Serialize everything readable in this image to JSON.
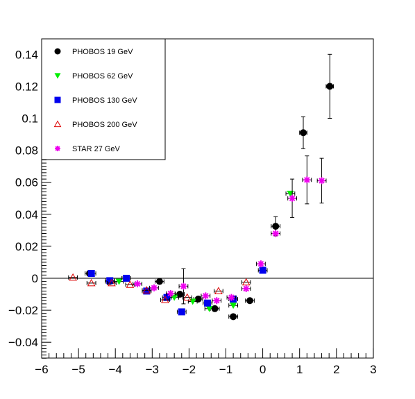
{
  "chart_data": {
    "type": "scatter",
    "title": "",
    "xlabel": "",
    "ylabel": "",
    "xlim": [
      -6,
      3
    ],
    "ylim": [
      -0.05,
      0.15
    ],
    "xticks": [
      "−6",
      "−5",
      "−4",
      "−3",
      "−2",
      "−1",
      "0",
      "1",
      "2",
      "3"
    ],
    "yticks": [
      "−0.04",
      "−0.02",
      "0",
      "0.02",
      "0.04",
      "0.06",
      "0.08",
      "0.1",
      "0.12",
      "0.14"
    ],
    "xtick_values": [
      -6,
      -5,
      -4,
      -3,
      -2,
      -1,
      0,
      1,
      2,
      3
    ],
    "ytick_values": [
      -0.04,
      -0.02,
      0,
      0.02,
      0.04,
      0.06,
      0.08,
      0.1,
      0.12,
      0.14
    ],
    "grid": false,
    "legend_position": "top-left",
    "zero_line": true,
    "series": [
      {
        "name": "PHOBOS  19 GeV",
        "marker": "circle",
        "color": "#000000",
        "points": [
          {
            "x": -4.7,
            "y": 0.003
          },
          {
            "x": -4.15,
            "y": -0.002
          },
          {
            "x": -3.7,
            "y": 0.0
          },
          {
            "x": -2.8,
            "y": -0.002
          },
          {
            "x": -2.25,
            "y": -0.01
          },
          {
            "x": -1.75,
            "y": -0.013
          },
          {
            "x": -1.3,
            "y": -0.019
          },
          {
            "x": -0.8,
            "y": -0.024
          },
          {
            "x": -0.35,
            "y": -0.014
          },
          {
            "x": 0.35,
            "y": 0.0325,
            "yerr": 0.006
          },
          {
            "x": 1.1,
            "y": 0.091,
            "xerr": 0.1,
            "yerr": 0.01
          },
          {
            "x": 1.82,
            "y": 0.12,
            "xerr": 0.1,
            "yerr": 0.02
          }
        ]
      },
      {
        "name": "PHOBOS  62 GeV",
        "marker": "triangle-down",
        "color": "#00ee00",
        "points": [
          {
            "x": -3.9,
            "y": -0.002
          },
          {
            "x": -2.4,
            "y": -0.012
          },
          {
            "x": -1.9,
            "y": -0.0145
          },
          {
            "x": -1.45,
            "y": -0.019
          },
          {
            "x": -0.8,
            "y": -0.017
          },
          {
            "x": 0.75,
            "y": 0.053
          }
        ]
      },
      {
        "name": "PHOBOS 130 GeV",
        "marker": "square",
        "color": "#0000ee",
        "points": [
          {
            "x": -4.65,
            "y": 0.003
          },
          {
            "x": -4.15,
            "y": -0.0015
          },
          {
            "x": -3.7,
            "y": 0.0
          },
          {
            "x": -3.15,
            "y": -0.008
          },
          {
            "x": -2.6,
            "y": -0.012
          },
          {
            "x": -2.2,
            "y": -0.021
          },
          {
            "x": -1.5,
            "y": -0.0155
          },
          {
            "x": -0.8,
            "y": -0.013
          },
          {
            "x": 0.0,
            "y": 0.005
          }
        ]
      },
      {
        "name": "PHOBOS 200 GeV",
        "marker": "triangle-up-open",
        "color": "#dd0000",
        "points": [
          {
            "x": -5.15,
            "y": 0.0005
          },
          {
            "x": -4.65,
            "y": -0.003
          },
          {
            "x": -4.1,
            "y": -0.003
          },
          {
            "x": -3.6,
            "y": -0.004
          },
          {
            "x": -3.15,
            "y": -0.0075
          },
          {
            "x": -2.65,
            "y": -0.0135
          },
          {
            "x": -2.05,
            "y": -0.012
          },
          {
            "x": -1.2,
            "y": -0.008
          },
          {
            "x": -0.45,
            "y": -0.0025
          }
        ]
      },
      {
        "name": "STAR 27 GeV",
        "marker": "star",
        "color": "#ee00ee",
        "points": [
          {
            "x": -3.4,
            "y": -0.0035
          },
          {
            "x": -2.95,
            "y": -0.006
          },
          {
            "x": -2.5,
            "y": -0.0095
          },
          {
            "x": -2.15,
            "y": -0.005,
            "yerr": 0.011
          },
          {
            "x": -1.55,
            "y": -0.011
          },
          {
            "x": -1.25,
            "y": -0.014
          },
          {
            "x": -0.85,
            "y": -0.012
          },
          {
            "x": -0.45,
            "y": -0.0065
          },
          {
            "x": -0.05,
            "y": 0.009
          },
          {
            "x": 0.35,
            "y": 0.028
          },
          {
            "x": 0.8,
            "y": 0.05,
            "yerr": 0.012
          },
          {
            "x": 1.2,
            "y": 0.0615,
            "yerr": 0.015
          },
          {
            "x": 1.6,
            "y": 0.061,
            "yerr": 0.014
          }
        ]
      }
    ]
  }
}
